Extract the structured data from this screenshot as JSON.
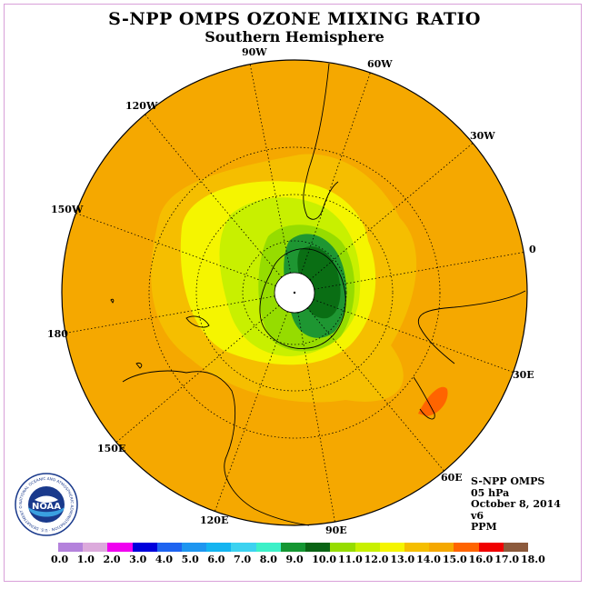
{
  "header": {
    "title": "S-NPP OMPS OZONE MIXING RATIO",
    "subtitle": "Southern Hemisphere"
  },
  "map": {
    "longitude_labels": [
      "90W",
      "60W",
      "30W",
      "0",
      "30E",
      "60E",
      "90E",
      "120E",
      "150E",
      "180",
      "150W",
      "120W"
    ],
    "colors": {
      "ocean_band": "#f5a800",
      "band_13_14": "#f5be00",
      "band_12_13": "#f5f500",
      "band_11_12": "#c8f000",
      "band_10_11": "#96dc00",
      "band_9_10": "#1e9632",
      "band_8_9": "#0a6e14",
      "band_15_16": "#ff6400",
      "pole": "#ffffff"
    }
  },
  "info": {
    "instrument": "S-NPP OMPS",
    "level": "05 hPa",
    "date": "October 8, 2014",
    "version": "v6",
    "units": "PPM"
  },
  "legend": {
    "ticks": [
      "0.0",
      "1.0",
      "2.0",
      "3.0",
      "4.0",
      "5.0",
      "6.0",
      "7.0",
      "8.0",
      "9.0",
      "10.0",
      "11.0",
      "12.0",
      "13.0",
      "14.0",
      "15.0",
      "16.0",
      "17.0",
      "18.0"
    ],
    "colors": [
      "#b482dc",
      "#dcaadc",
      "#f000f0",
      "#0000dc",
      "#1e64f0",
      "#1e96f0",
      "#14b4f0",
      "#3cd2f0",
      "#3cf0c8",
      "#149632",
      "#0a6414",
      "#96dc00",
      "#c8f000",
      "#f5f500",
      "#f5be00",
      "#f5a800",
      "#ff6400",
      "#f00000",
      "#8c5a3c"
    ]
  },
  "logo": {
    "text": "NOAA",
    "ring_text": "NATIONAL OCEANIC AND ATMOSPHERIC ADMINISTRATION · U.S. DEPARTMENT OF COMMERCE"
  }
}
